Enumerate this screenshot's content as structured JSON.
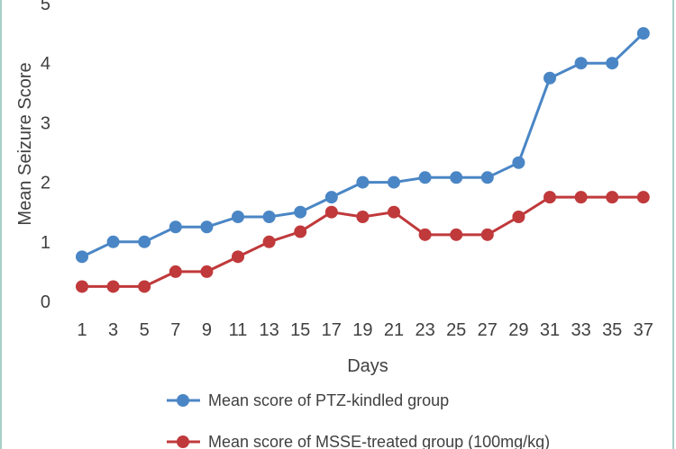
{
  "chart_data": {
    "type": "line",
    "title": "",
    "xlabel": "Days",
    "ylabel": "Mean Seizure Score",
    "categories": [
      "1",
      "3",
      "5",
      "7",
      "9",
      "11",
      "13",
      "15",
      "17",
      "19",
      "21",
      "23",
      "25",
      "27",
      "29",
      "31",
      "33",
      "35",
      "37"
    ],
    "ylim": [
      0,
      5
    ],
    "yticks": [
      "0",
      "1",
      "2",
      "3",
      "4",
      "5"
    ],
    "grid": false,
    "legend_position": "bottom",
    "series": [
      {
        "name": "Mean score of PTZ-kindled group",
        "color": "#4a86c5",
        "values": [
          0.75,
          1.0,
          1.0,
          1.25,
          1.25,
          1.42,
          1.42,
          1.5,
          1.75,
          2.0,
          2.0,
          2.08,
          2.08,
          2.08,
          2.33,
          3.75,
          4.0,
          4.0,
          4.5
        ]
      },
      {
        "name": "Mean score of MSSE-treated group (100mg/kg)",
        "color": "#c0393b",
        "values": [
          0.25,
          0.25,
          0.25,
          0.5,
          0.5,
          0.75,
          1.0,
          1.17,
          1.5,
          1.42,
          1.5,
          1.12,
          1.12,
          1.12,
          1.42,
          1.75,
          1.75,
          1.75,
          1.75
        ]
      }
    ]
  },
  "frame_color": "#a8cfc8"
}
